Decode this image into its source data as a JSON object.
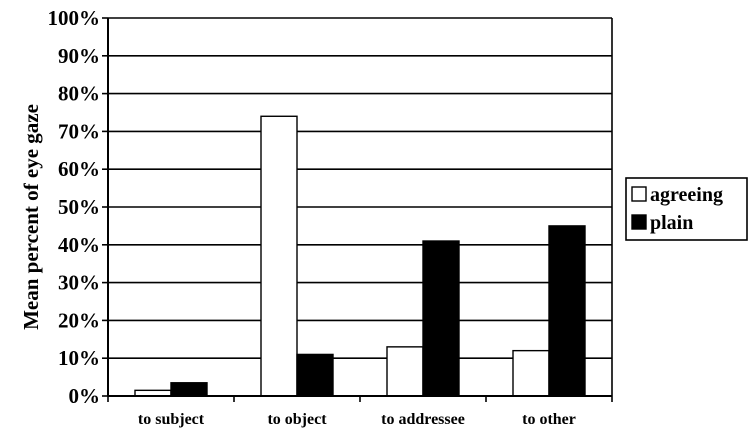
{
  "chart_data": {
    "type": "bar",
    "ylabel": "Mean percent of eye gaze",
    "xlabel": "",
    "ylim": [
      0,
      100
    ],
    "yticks": [
      0,
      10,
      20,
      30,
      40,
      50,
      60,
      70,
      80,
      90,
      100
    ],
    "ytick_labels": [
      "0%",
      "10%",
      "20%",
      "30%",
      "40%",
      "50%",
      "60%",
      "70%",
      "80%",
      "90%",
      "100%"
    ],
    "categories": [
      "to subject",
      "to object",
      "to addressee",
      "to other"
    ],
    "series": [
      {
        "name": "agreeing",
        "values": [
          1.5,
          74,
          13,
          12
        ],
        "color": "#ffffff"
      },
      {
        "name": "plain",
        "values": [
          3.5,
          11,
          41,
          45
        ],
        "color": "#000000"
      }
    ],
    "grid": true,
    "legend_position": "right"
  }
}
